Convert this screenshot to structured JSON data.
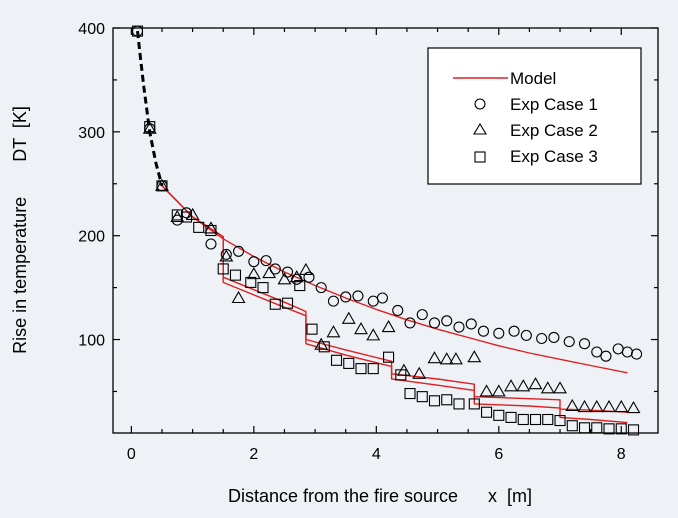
{
  "chart_data": {
    "type": "scatter",
    "xlabel": "Distance from the fire source      x  [m]",
    "ylabel": "Rise in temperature       DT  [K]",
    "xlim": [
      -0.3,
      8.6
    ],
    "ylim": [
      10,
      400
    ],
    "x_ticks": [
      0,
      2,
      4,
      6,
      8
    ],
    "y_ticks": [
      100,
      200,
      300,
      400
    ],
    "grid": false,
    "legend_position": "top-right",
    "legend": [
      {
        "label": "Model",
        "marker": "line"
      },
      {
        "label": "Exp Case 1",
        "marker": "circle"
      },
      {
        "label": "Exp Case 2",
        "marker": "triangle"
      },
      {
        "label": "Exp Case 3",
        "marker": "square"
      }
    ],
    "colors": {
      "model": "#e02020",
      "dashed": "#000000",
      "markers": "#000000",
      "background": "#eef1f5"
    },
    "near_field_dashed": {
      "x": [
        0.1,
        0.15,
        0.2,
        0.3,
        0.4,
        0.5
      ],
      "y": [
        397,
        370,
        345,
        300,
        270,
        248
      ]
    },
    "model_lines": [
      {
        "name": "Model",
        "x": [
          0.5,
          1.0,
          1.5,
          2.0,
          2.5,
          3.0,
          3.5,
          4.0,
          4.5,
          5.0,
          5.5,
          6.0,
          6.5,
          7.0,
          7.5,
          8.1
        ],
        "y": [
          248,
          218,
          197,
          180,
          165,
          152,
          140,
          129,
          119,
          110,
          102,
          94,
          87,
          81,
          75,
          68
        ]
      },
      {
        "name": "Model",
        "x": [
          0.5,
          1.0,
          1.5,
          1.5,
          2.0,
          2.5,
          2.85,
          2.85,
          3.5,
          4.25,
          4.25,
          5.0,
          5.6,
          5.6,
          6.5,
          7.0,
          7.0,
          7.5,
          8.1
        ],
        "y": [
          248,
          218,
          199,
          160,
          148,
          136,
          127,
          100,
          90,
          79,
          67,
          62,
          57,
          45,
          43,
          42,
          33,
          32,
          30
        ]
      },
      {
        "name": "Model",
        "x": [
          0.5,
          1.0,
          1.5,
          1.5,
          2.0,
          2.5,
          2.85,
          2.85,
          3.5,
          4.25,
          4.25,
          5.0,
          5.6,
          5.6,
          6.5,
          7.0,
          7.0,
          7.5,
          8.1
        ],
        "y": [
          248,
          218,
          199,
          155,
          143,
          131,
          123,
          96,
          85,
          74,
          62,
          56,
          51,
          38,
          36,
          34,
          25,
          23,
          20
        ]
      }
    ],
    "series": [
      {
        "name": "Exp Case 1",
        "marker": "circle",
        "points": [
          [
            0.1,
            397
          ],
          [
            0.3,
            303
          ],
          [
            0.5,
            248
          ],
          [
            0.75,
            215
          ],
          [
            0.9,
            222
          ],
          [
            1.3,
            192
          ],
          [
            1.55,
            182
          ],
          [
            1.75,
            185
          ],
          [
            2.0,
            175
          ],
          [
            2.2,
            176
          ],
          [
            2.35,
            168
          ],
          [
            2.55,
            165
          ],
          [
            2.7,
            158
          ],
          [
            2.9,
            160
          ],
          [
            3.1,
            150
          ],
          [
            3.3,
            137
          ],
          [
            3.5,
            141
          ],
          [
            3.7,
            142
          ],
          [
            3.95,
            137
          ],
          [
            4.1,
            140
          ],
          [
            4.35,
            128
          ],
          [
            4.55,
            116
          ],
          [
            4.75,
            124
          ],
          [
            4.95,
            116
          ],
          [
            5.15,
            118
          ],
          [
            5.35,
            112
          ],
          [
            5.55,
            115
          ],
          [
            5.75,
            108
          ],
          [
            6.0,
            106
          ],
          [
            6.25,
            108
          ],
          [
            6.45,
            104
          ],
          [
            6.7,
            101
          ],
          [
            6.9,
            102
          ],
          [
            7.15,
            98
          ],
          [
            7.4,
            96
          ],
          [
            7.6,
            88
          ],
          [
            7.75,
            84
          ],
          [
            7.95,
            91
          ],
          [
            8.1,
            88
          ],
          [
            8.25,
            86
          ]
        ]
      },
      {
        "name": "Exp Case 2",
        "marker": "triangle",
        "points": [
          [
            0.3,
            303
          ],
          [
            0.5,
            248
          ],
          [
            0.75,
            218
          ],
          [
            1.0,
            220
          ],
          [
            1.3,
            207
          ],
          [
            1.55,
            180
          ],
          [
            1.75,
            140
          ],
          [
            2.0,
            163
          ],
          [
            2.25,
            164
          ],
          [
            2.5,
            158
          ],
          [
            2.7,
            160
          ],
          [
            2.85,
            167
          ],
          [
            3.1,
            95
          ],
          [
            3.3,
            107
          ],
          [
            3.55,
            120
          ],
          [
            3.75,
            110
          ],
          [
            3.95,
            104
          ],
          [
            4.2,
            112
          ],
          [
            4.45,
            70
          ],
          [
            4.7,
            67
          ],
          [
            4.95,
            82
          ],
          [
            5.15,
            81
          ],
          [
            5.3,
            81
          ],
          [
            5.6,
            83
          ],
          [
            5.8,
            50
          ],
          [
            6.0,
            50
          ],
          [
            6.2,
            55
          ],
          [
            6.4,
            55
          ],
          [
            6.6,
            57
          ],
          [
            6.8,
            53
          ],
          [
            7.0,
            53
          ],
          [
            7.2,
            36
          ],
          [
            7.4,
            35
          ],
          [
            7.6,
            35
          ],
          [
            7.8,
            35
          ],
          [
            8.0,
            35
          ],
          [
            8.2,
            34
          ]
        ]
      },
      {
        "name": "Exp Case 3",
        "marker": "square",
        "points": [
          [
            0.1,
            397
          ],
          [
            0.3,
            305
          ],
          [
            0.5,
            248
          ],
          [
            0.75,
            220
          ],
          [
            0.9,
            218
          ],
          [
            1.1,
            208
          ],
          [
            1.3,
            205
          ],
          [
            1.5,
            168
          ],
          [
            1.7,
            162
          ],
          [
            1.95,
            155
          ],
          [
            2.15,
            150
          ],
          [
            2.35,
            134
          ],
          [
            2.55,
            135
          ],
          [
            2.75,
            152
          ],
          [
            2.95,
            110
          ],
          [
            3.15,
            93
          ],
          [
            3.35,
            80
          ],
          [
            3.55,
            77
          ],
          [
            3.75,
            72
          ],
          [
            3.95,
            72
          ],
          [
            4.2,
            83
          ],
          [
            4.4,
            66
          ],
          [
            4.55,
            48
          ],
          [
            4.75,
            45
          ],
          [
            4.95,
            41
          ],
          [
            5.15,
            42
          ],
          [
            5.35,
            38
          ],
          [
            5.6,
            38
          ],
          [
            5.8,
            30
          ],
          [
            6.0,
            27
          ],
          [
            6.2,
            25
          ],
          [
            6.4,
            23
          ],
          [
            6.6,
            23
          ],
          [
            6.8,
            23
          ],
          [
            7.0,
            22
          ],
          [
            7.2,
            17
          ],
          [
            7.4,
            15
          ],
          [
            7.6,
            15
          ],
          [
            7.8,
            14
          ],
          [
            8.0,
            14
          ],
          [
            8.2,
            13
          ]
        ]
      }
    ]
  }
}
